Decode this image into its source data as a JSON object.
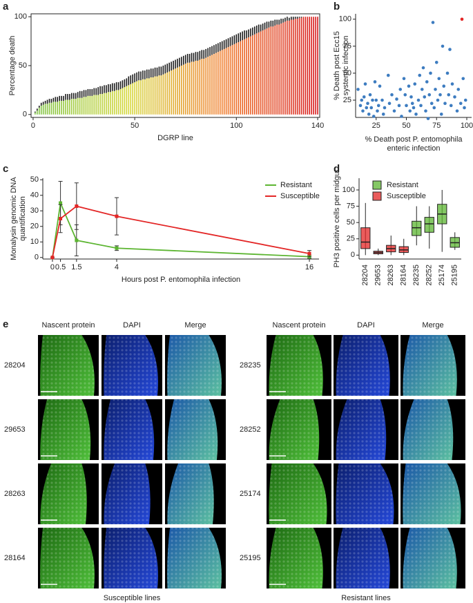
{
  "panel_labels": [
    "a",
    "b",
    "c",
    "d",
    "e"
  ],
  "chart_data": [
    {
      "type": "bar",
      "y_label": "Percentage death",
      "x_label": "DGRP line",
      "x": [
        1,
        2,
        3,
        4,
        5,
        6,
        7,
        8,
        9,
        10,
        11,
        12,
        13,
        14,
        15,
        16,
        17,
        18,
        19,
        20,
        21,
        22,
        23,
        24,
        25,
        26,
        27,
        28,
        29,
        30,
        31,
        32,
        33,
        34,
        35,
        36,
        37,
        38,
        39,
        40,
        41,
        42,
        43,
        44,
        45,
        46,
        47,
        48,
        49,
        50,
        51,
        52,
        53,
        54,
        55,
        56,
        57,
        58,
        59,
        60,
        61,
        62,
        63,
        64,
        65,
        66,
        67,
        68,
        69,
        70,
        71,
        72,
        73,
        74,
        75,
        76,
        77,
        78,
        79,
        80,
        81,
        82,
        83,
        84,
        85,
        86,
        87,
        88,
        89,
        90,
        91,
        92,
        93,
        94,
        95,
        96,
        97,
        98,
        99,
        100,
        101,
        102,
        103,
        104,
        105,
        106,
        107,
        108,
        109,
        110,
        111,
        112,
        113,
        114,
        115,
        116,
        117,
        118,
        119,
        120,
        121,
        122,
        123,
        124,
        125,
        126,
        127,
        128,
        129,
        130,
        131,
        132,
        133,
        134,
        135,
        136,
        137,
        138,
        139,
        140
      ],
      "values": [
        2,
        4,
        7,
        9,
        10,
        11,
        11,
        12,
        12,
        13,
        13,
        13,
        14,
        14,
        14,
        15,
        15,
        15,
        16,
        16,
        16,
        17,
        17,
        17,
        18,
        18,
        19,
        19,
        19,
        20,
        20,
        20,
        21,
        21,
        22,
        22,
        23,
        23,
        24,
        24,
        25,
        25,
        26,
        27,
        28,
        29,
        30,
        31,
        32,
        33,
        34,
        35,
        35,
        36,
        36,
        37,
        37,
        38,
        38,
        39,
        39,
        40,
        40,
        41,
        42,
        43,
        44,
        45,
        46,
        47,
        48,
        49,
        50,
        51,
        52,
        53,
        53,
        54,
        54,
        55,
        55,
        56,
        57,
        57,
        58,
        59,
        60,
        61,
        62,
        63,
        64,
        65,
        66,
        67,
        68,
        69,
        70,
        71,
        72,
        73,
        74,
        75,
        76,
        77,
        78,
        79,
        80,
        81,
        82,
        83,
        84,
        85,
        86,
        87,
        88,
        89,
        90,
        90,
        91,
        92,
        92,
        93,
        94,
        95,
        96,
        96,
        97,
        97,
        98,
        98,
        99,
        99,
        100,
        100,
        100,
        100,
        100,
        100,
        100,
        100
      ],
      "errors": [
        1,
        2,
        2,
        3,
        3,
        3,
        4,
        4,
        4,
        4,
        5,
        5,
        5,
        5,
        5,
        6,
        6,
        6,
        6,
        6,
        6,
        6,
        7,
        7,
        7,
        7,
        7,
        7,
        7,
        7,
        7,
        8,
        8,
        8,
        8,
        8,
        8,
        8,
        8,
        8,
        8,
        8,
        8,
        8,
        8,
        8,
        9,
        9,
        9,
        9,
        9,
        9,
        9,
        9,
        9,
        9,
        9,
        9,
        9,
        9,
        9,
        9,
        9,
        9,
        9,
        9,
        9,
        9,
        9,
        9,
        9,
        9,
        9,
        9,
        9,
        9,
        9,
        9,
        9,
        9,
        9,
        9,
        9,
        9,
        9,
        9,
        9,
        9,
        9,
        9,
        9,
        9,
        9,
        9,
        9,
        9,
        9,
        9,
        9,
        9,
        9,
        9,
        9,
        9,
        8,
        8,
        8,
        8,
        8,
        8,
        8,
        7,
        7,
        7,
        7,
        6,
        6,
        6,
        6,
        5,
        5,
        5,
        4,
        4,
        4,
        3,
        3,
        3,
        2,
        2,
        1,
        1,
        0,
        0,
        0,
        0,
        0,
        0,
        0,
        0
      ],
      "gradient": [
        "#7cc242",
        "#d6d83a",
        "#f07b2a",
        "#d7191c"
      ],
      "error_color": "#1a1a1a",
      "xlim": [
        -1,
        141
      ],
      "ylim": [
        -3,
        103
      ],
      "xticks": [
        0,
        50,
        100,
        140
      ],
      "yticks": [
        0,
        50,
        100
      ]
    },
    {
      "type": "scatter",
      "y_label": [
        "% Death post Ecc15",
        "systemic infection"
      ],
      "x_label": [
        "% Death post P. entomophila",
        "enteric infection"
      ],
      "series": [
        {
          "color": "#3d7cc0",
          "x": [
            10,
            12,
            13,
            14,
            15,
            16,
            17,
            18,
            19,
            20,
            21,
            22,
            23,
            24,
            25,
            26,
            27,
            28,
            30,
            31,
            32,
            35,
            36,
            38,
            40,
            42,
            44,
            45,
            46,
            48,
            49,
            50,
            52,
            53,
            54,
            55,
            56,
            57,
            58,
            60,
            61,
            62,
            63,
            64,
            65,
            66,
            67,
            68,
            69,
            70,
            71,
            72,
            73,
            74,
            75,
            76,
            77,
            78,
            79,
            80,
            81,
            82,
            84,
            85,
            86,
            87,
            88,
            90,
            92,
            93,
            95,
            97,
            98,
            99
          ],
          "y": [
            35,
            20,
            25,
            15,
            28,
            40,
            18,
            22,
            12,
            30,
            18,
            25,
            10,
            42,
            25,
            15,
            20,
            38,
            25,
            12,
            18,
            48,
            22,
            30,
            15,
            26,
            20,
            35,
            10,
            45,
            30,
            20,
            38,
            15,
            28,
            22,
            18,
            40,
            12,
            25,
            48,
            20,
            35,
            55,
            28,
            15,
            42,
            8,
            30,
            50,
            22,
            97,
            18,
            35,
            60,
            25,
            45,
            30,
            12,
            75,
            38,
            22,
            50,
            30,
            72,
            20,
            40,
            28,
            15,
            35,
            22,
            45,
            18,
            25
          ]
        },
        {
          "color": "#e32626",
          "x": [
            96
          ],
          "y": [
            100
          ]
        }
      ],
      "xlim": [
        8,
        104
      ],
      "ylim": [
        9,
        105
      ],
      "xticks": [
        25,
        50,
        75,
        100
      ],
      "yticks": [
        25,
        50,
        75,
        100
      ]
    },
    {
      "type": "line",
      "y_label": [
        "Monalysin genomic DNA",
        "quantification"
      ],
      "x_label": "Hours post P. entomophila infection",
      "x": [
        0,
        0.5,
        1.5,
        4,
        16
      ],
      "series": [
        {
          "name": "Resistant",
          "color": "#5cb531",
          "values": [
            0,
            35,
            11,
            6,
            0.5
          ],
          "errors": [
            0,
            14,
            10,
            1.5,
            1
          ]
        },
        {
          "name": "Susceptible",
          "color": "#e32626",
          "values": [
            0,
            25,
            33,
            26.5,
            2.5
          ],
          "errors": [
            0,
            9,
            15,
            12,
            2
          ]
        }
      ],
      "legend": "upper right",
      "error_color": "#333333",
      "xlim": [
        -0.6,
        16.6
      ],
      "ylim": [
        -1,
        51
      ],
      "xticks": [
        0,
        0.5,
        1.5,
        4,
        16
      ],
      "yticks": [
        0,
        10,
        20,
        30,
        40,
        50
      ]
    },
    {
      "type": "box",
      "y_label": "PH3 positive cells per midgut",
      "categories": [
        "28204",
        "29653",
        "28263",
        "28164",
        "28235",
        "28252",
        "25174",
        "25195"
      ],
      "group": [
        1,
        1,
        1,
        1,
        0,
        0,
        0,
        0
      ],
      "series": [
        {
          "name": "Resistant",
          "color": "#5cb531"
        },
        {
          "name": "Susceptible",
          "color": "#e32626"
        }
      ],
      "boxes": [
        {
          "min": 0,
          "q1": 10,
          "median": 20,
          "q3": 42,
          "max": 80
        },
        {
          "min": 0,
          "q1": 2,
          "median": 4,
          "q3": 6,
          "max": 10
        },
        {
          "min": 0,
          "q1": 5,
          "median": 10,
          "q3": 15,
          "max": 30
        },
        {
          "min": 0,
          "q1": 4,
          "median": 8,
          "q3": 13,
          "max": 25
        },
        {
          "min": 15,
          "q1": 30,
          "median": 42,
          "q3": 52,
          "max": 75
        },
        {
          "min": 10,
          "q1": 35,
          "median": 48,
          "q3": 58,
          "max": 75
        },
        {
          "min": 5,
          "q1": 48,
          "median": 63,
          "q3": 78,
          "max": 100
        },
        {
          "min": 8,
          "q1": 12,
          "median": 19,
          "q3": 27,
          "max": 35
        }
      ],
      "legend": "upper left",
      "ylim": [
        -6,
        118
      ],
      "yticks": [
        0,
        25,
        50,
        75,
        100
      ]
    }
  ],
  "imaging": {
    "channels": [
      {
        "name": "Nascent protein",
        "color": "#5cb531"
      },
      {
        "name": "DAPI",
        "color": "#2a5bd7"
      },
      {
        "name": "Merge",
        "color": "#222222"
      }
    ],
    "groups": [
      {
        "caption": "Susceptible lines",
        "color": "#e32626",
        "lines": [
          "28204",
          "29653",
          "28263",
          "28164"
        ]
      },
      {
        "caption": "Resistant lines",
        "color": "#5cb531",
        "lines": [
          "28235",
          "28252",
          "25174",
          "25195"
        ]
      }
    ]
  }
}
